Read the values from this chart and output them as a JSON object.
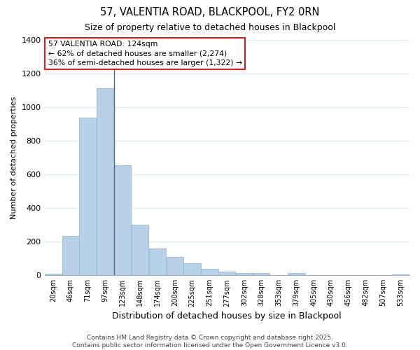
{
  "title": "57, VALENTIA ROAD, BLACKPOOL, FY2 0RN",
  "subtitle": "Size of property relative to detached houses in Blackpool",
  "xlabel": "Distribution of detached houses by size in Blackpool",
  "ylabel": "Number of detached properties",
  "bar_color": "#b8d0e8",
  "bar_edge_color": "#8ab0d0",
  "background_color": "#ffffff",
  "fig_background_color": "#ffffff",
  "grid_color": "#e0e8f0",
  "annotation_text": "57 VALENTIA ROAD: 124sqm\n← 62% of detached houses are smaller (2,274)\n36% of semi-detached houses are larger (1,322) →",
  "vline_x": 123,
  "footer_text": "Contains HM Land Registry data © Crown copyright and database right 2025.\nContains public sector information licensed under the Open Government Licence v3.0.",
  "categories": [
    "20sqm",
    "46sqm",
    "71sqm",
    "97sqm",
    "123sqm",
    "148sqm",
    "174sqm",
    "200sqm",
    "225sqm",
    "251sqm",
    "277sqm",
    "302sqm",
    "328sqm",
    "353sqm",
    "379sqm",
    "405sqm",
    "430sqm",
    "456sqm",
    "482sqm",
    "507sqm",
    "533sqm"
  ],
  "bin_edges": [
    20,
    46,
    71,
    97,
    123,
    148,
    174,
    200,
    225,
    251,
    277,
    302,
    328,
    353,
    379,
    405,
    430,
    456,
    482,
    507,
    533,
    559
  ],
  "values": [
    10,
    235,
    935,
    1110,
    655,
    300,
    160,
    110,
    70,
    40,
    20,
    15,
    15,
    0,
    15,
    0,
    0,
    0,
    0,
    0,
    3
  ],
  "ylim": [
    0,
    1400
  ],
  "yticks": [
    0,
    200,
    400,
    600,
    800,
    1000,
    1200,
    1400
  ]
}
